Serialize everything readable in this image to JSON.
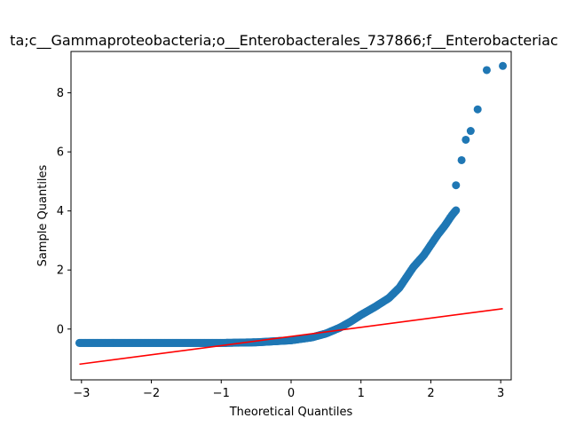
{
  "chart_data": {
    "type": "scatter",
    "title": "ta;c__Gammaproteobacteria;o__Enterobacterales_737866;f__Enterobacteriac",
    "xlabel": "Theoretical Quantiles",
    "ylabel": "Sample Quantiles",
    "xlim": [
      -3.15,
      3.15
    ],
    "ylim": [
      -1.72,
      9.4
    ],
    "xticks": [
      -3,
      -2,
      -1,
      0,
      1,
      2,
      3
    ],
    "yticks": [
      0,
      2,
      4,
      6,
      8
    ],
    "grid": false,
    "point_color": "#1f77b4",
    "line_color": "#ff0000",
    "reference_line": {
      "x": [
        -3.03,
        3.03
      ],
      "y": [
        -1.19,
        0.69
      ]
    },
    "outliers": [
      [
        2.36,
        4.87
      ],
      [
        2.44,
        5.72
      ],
      [
        2.5,
        6.41
      ],
      [
        2.57,
        6.71
      ],
      [
        2.67,
        7.44
      ],
      [
        2.8,
        8.77
      ],
      [
        3.03,
        8.91
      ]
    ],
    "quantile_curve": [
      [
        -3.03,
        -0.47
      ],
      [
        -2.8,
        -0.47
      ],
      [
        -2.67,
        -0.47
      ],
      [
        -2.5,
        -0.47
      ],
      [
        -2.0,
        -0.47
      ],
      [
        -1.5,
        -0.47
      ],
      [
        -1.0,
        -0.47
      ],
      [
        -0.5,
        -0.45
      ],
      [
        0.0,
        -0.38
      ],
      [
        0.3,
        -0.28
      ],
      [
        0.5,
        -0.15
      ],
      [
        0.7,
        0.05
      ],
      [
        0.85,
        0.25
      ],
      [
        1.0,
        0.48
      ],
      [
        1.2,
        0.75
      ],
      [
        1.4,
        1.05
      ],
      [
        1.55,
        1.4
      ],
      [
        1.65,
        1.75
      ],
      [
        1.75,
        2.1
      ],
      [
        1.9,
        2.5
      ],
      [
        2.0,
        2.85
      ],
      [
        2.1,
        3.2
      ],
      [
        2.2,
        3.5
      ],
      [
        2.3,
        3.85
      ],
      [
        2.36,
        4.02
      ]
    ],
    "n_points": 520
  }
}
